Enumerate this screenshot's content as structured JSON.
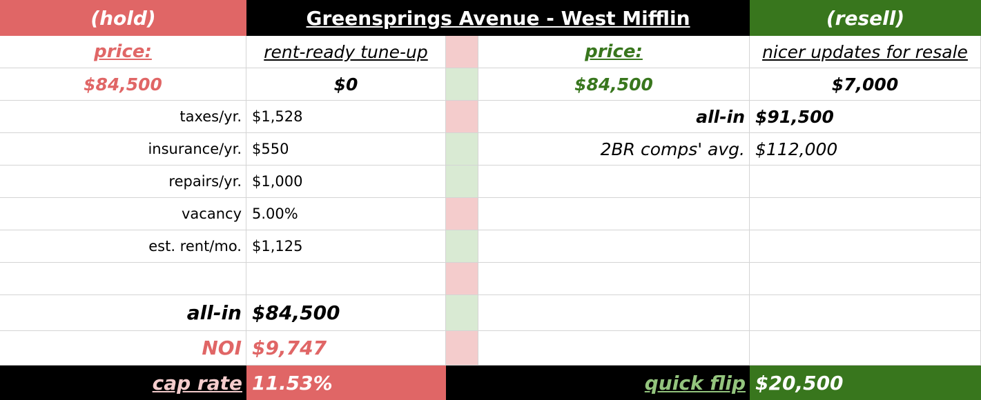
{
  "header": {
    "left": "(hold)",
    "title": "Greensprings Avenue - West Mifflin",
    "right": "(resell)"
  },
  "hold": {
    "price_label": "price:",
    "price_value": "$84,500",
    "tuneup_label": "rent-ready tune-up",
    "tuneup_value": "$0",
    "rows": [
      {
        "label": "taxes/yr.",
        "value": "$1,528"
      },
      {
        "label": "insurance/yr.",
        "value": "$550"
      },
      {
        "label": "repairs/yr.",
        "value": "$1,000"
      },
      {
        "label": "vacancy",
        "value": "5.00%"
      },
      {
        "label": "est. rent/mo.",
        "value": "$1,125"
      }
    ],
    "allin_label": "all-in",
    "allin_value": "$84,500",
    "noi_label": "NOI",
    "noi_value": "$9,747",
    "cap_label": "cap rate",
    "cap_value": "11.53%"
  },
  "resell": {
    "price_label": "price:",
    "price_value": "$84,500",
    "updates_label": "nicer updates for resale",
    "updates_value": "$7,000",
    "allin_label": "all-in",
    "allin_value": "$91,500",
    "comps_label": "2BR comps' avg.",
    "comps_value": "$112,000",
    "flip_label": "quick flip",
    "flip_value": "$20,500"
  },
  "colors": {
    "hold": "#e06666",
    "resell": "#38761d",
    "header": "#000000",
    "stripe_pink": "#f4cccc",
    "stripe_green": "#d9ead3"
  }
}
